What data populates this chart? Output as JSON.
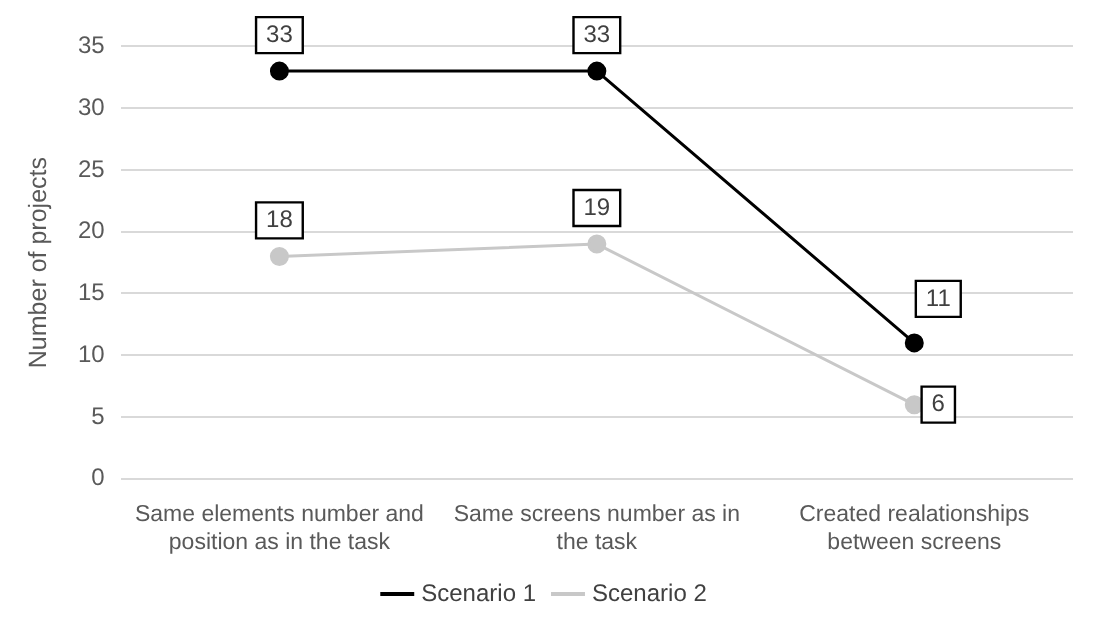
{
  "chart_data": {
    "type": "line",
    "ylabel": "Number of projects",
    "categories": [
      "Same elements number and position as in the task",
      "Same screens number as in the task",
      "Created realationships between screens"
    ],
    "series": [
      {
        "name": "Scenario 1",
        "color": "#000000",
        "values": [
          33,
          33,
          11
        ]
      },
      {
        "name": "Scenario 2",
        "color": "#c8c8c8",
        "values": [
          18,
          19,
          6
        ]
      }
    ],
    "ylim": [
      0,
      35
    ],
    "yticks": [
      0,
      5,
      10,
      15,
      20,
      25,
      30,
      35
    ],
    "grid": "y",
    "legend": "bottom",
    "marker": "circle",
    "data_labels": true
  }
}
